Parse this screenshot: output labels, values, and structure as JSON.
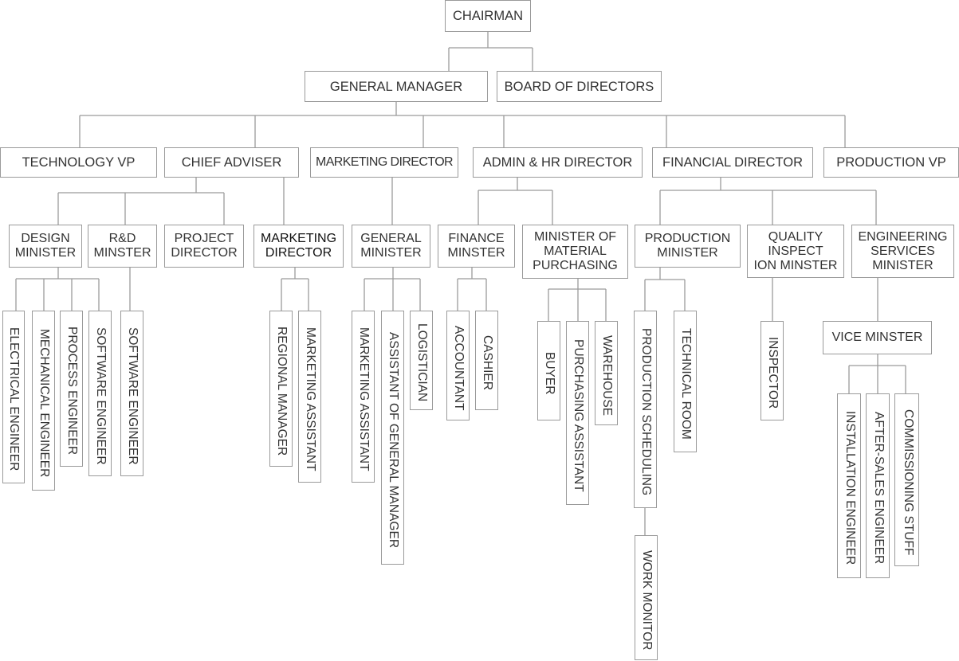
{
  "top": {
    "chairman": "CHAIRMAN",
    "general_manager": "GENERAL MANAGER",
    "board": "BOARD OF DIRECTORS"
  },
  "level2": {
    "technology_vp": "TECHNOLOGY VP",
    "chief_adviser": "CHIEF ADVISER",
    "marketing_director": "MARKETING DIRECTOR",
    "admin_hr": "ADMIN & HR DIRECTOR",
    "financial_director": "FINANCIAL DIRECTOR",
    "production_vp": "PRODUCTION VP"
  },
  "level3": {
    "design": "DESIGN\nMINISTER",
    "rd": "R&D\nMINSTER",
    "project": "PROJECT\nDIRECTOR",
    "marketing_director": "MARKETING\nDIRECTOR",
    "general_minister": "GENERAL\nMINISTER",
    "finance": "FINANCE\nMINSTER",
    "material": "MINISTER OF\nMATERIAL\nPURCHASING",
    "production": "PRODUCTION\nMINISTER",
    "quality": "QUALITY\nINSPECT\nION MINSTER",
    "engineering": "ENGINEERING\nSERVICES\nMINISTER",
    "vice": "VICE MINSTER"
  },
  "level4": {
    "electrical": "ELECTRICAL ENGINEER",
    "mechanical": "MECHANICAL ENGINEER",
    "process": "PROCESS ENGINEER",
    "software1": "SOFTWARE ENGINEER",
    "software2": "SOFTWARE ENGINEER",
    "regional": "REGIONAL MANAGER",
    "mkt_assistant1": "MARKETING ASSISTANT",
    "mkt_assistant2": "MARKETING ASSISTANT",
    "assistant_gm": "ASSISTANT OF GENERAL MANAGER",
    "logistician": "LOGISTICIAN",
    "accountant": "ACCOUNTANT",
    "cashier": "CASHIER",
    "buyer": "BUYER",
    "purchasing_assistant": "PURCHASING ASSISTANT",
    "warehouse": "WAREHOUSE",
    "scheduling": "PRODUCTION SCHEDULING",
    "technical_room": "TECHNICAL ROOM",
    "work_monitor": "WORK MONITOR",
    "inspector": "INSPECTOR",
    "installation": "INSTALLATION ENGINEER",
    "after_sales": "AFTER-SALES ENGINEER",
    "commissioning": "COMMISSIONING STUFF"
  }
}
